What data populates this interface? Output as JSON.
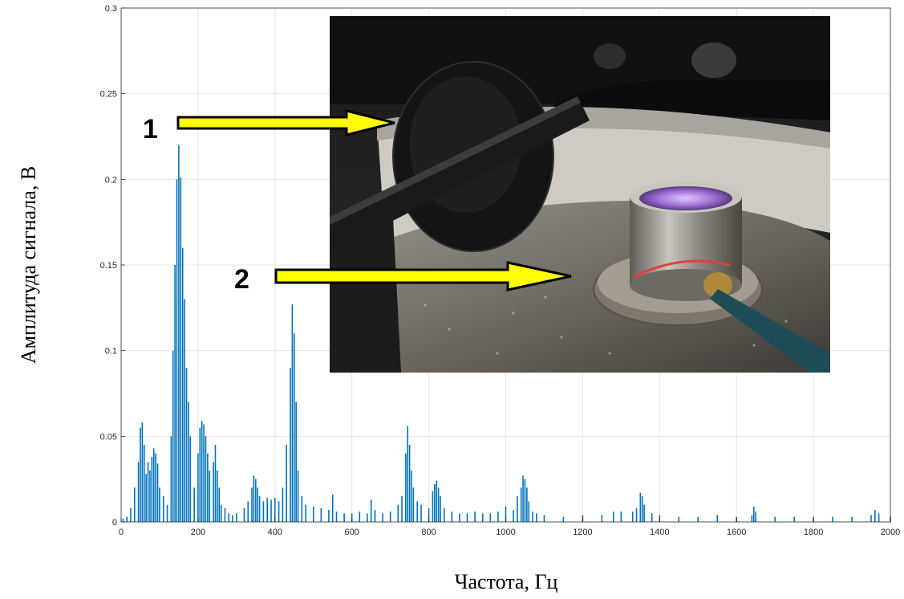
{
  "colors": {
    "series": "#0072BD",
    "grid": "#e6e6e6",
    "axis": "#262626",
    "arrow_fill": "#ffff00",
    "arrow_stroke": "#000000"
  },
  "inset_photo": {
    "description_icon": "photo-inset",
    "callouts": [
      {
        "label": "1"
      },
      {
        "label": "2"
      }
    ]
  },
  "chart_data": {
    "type": "bar",
    "title": "",
    "xlabel": "Частота, Гц",
    "ylabel": "Амплитуда сигнала, В",
    "xlim": [
      0,
      2000
    ],
    "ylim": [
      0,
      0.3
    ],
    "x_ticks": [
      0,
      200,
      400,
      600,
      800,
      1000,
      1200,
      1400,
      1600,
      1800,
      2000
    ],
    "y_ticks": [
      0,
      0.05,
      0.1,
      0.15,
      0.2,
      0.25,
      0.3
    ],
    "x_tick_labels": [
      "0",
      "200",
      "400",
      "600",
      "800",
      "1000",
      "1200",
      "1400",
      "1600",
      "1800",
      "2000"
    ],
    "y_tick_labels": [
      "0",
      "0.05",
      "0.1",
      "0.15",
      "0.2",
      "0.25",
      "0.3"
    ],
    "grid": true,
    "series": [
      {
        "x": [
          5,
          15,
          25,
          35,
          45,
          50,
          55,
          60,
          65,
          70,
          75,
          80,
          85,
          90,
          95,
          100,
          110,
          120,
          130,
          135,
          140,
          145,
          150,
          155,
          160,
          165,
          170,
          175,
          180,
          190,
          200,
          205,
          210,
          215,
          220,
          225,
          230,
          240,
          245,
          250,
          255,
          260,
          270,
          280,
          290,
          300,
          320,
          330,
          340,
          345,
          350,
          355,
          360,
          370,
          380,
          390,
          400,
          410,
          420,
          430,
          440,
          445,
          450,
          455,
          460,
          470,
          480,
          500,
          520,
          540,
          550,
          560,
          580,
          600,
          620,
          640,
          650,
          660,
          680,
          700,
          720,
          730,
          740,
          745,
          750,
          755,
          760,
          770,
          780,
          800,
          810,
          815,
          820,
          825,
          830,
          840,
          860,
          880,
          900,
          920,
          940,
          960,
          980,
          1000,
          1020,
          1030,
          1040,
          1045,
          1050,
          1055,
          1060,
          1070,
          1080,
          1100,
          1150,
          1200,
          1250,
          1280,
          1300,
          1330,
          1340,
          1350,
          1355,
          1360,
          1380,
          1400,
          1450,
          1500,
          1550,
          1600,
          1640,
          1645,
          1650,
          1700,
          1750,
          1800,
          1850,
          1900,
          1950,
          1960,
          1970,
          2000
        ],
        "values": [
          0.002,
          0.003,
          0.008,
          0.02,
          0.035,
          0.055,
          0.058,
          0.045,
          0.028,
          0.035,
          0.03,
          0.038,
          0.043,
          0.04,
          0.034,
          0.02,
          0.015,
          0.01,
          0.05,
          0.1,
          0.15,
          0.2,
          0.22,
          0.201,
          0.16,
          0.13,
          0.09,
          0.07,
          0.05,
          0.02,
          0.04,
          0.055,
          0.059,
          0.057,
          0.05,
          0.04,
          0.03,
          0.035,
          0.045,
          0.03,
          0.02,
          0.01,
          0.008,
          0.005,
          0.004,
          0.005,
          0.008,
          0.012,
          0.02,
          0.027,
          0.025,
          0.02,
          0.015,
          0.012,
          0.014,
          0.013,
          0.014,
          0.012,
          0.02,
          0.045,
          0.09,
          0.127,
          0.11,
          0.07,
          0.03,
          0.015,
          0.01,
          0.009,
          0.008,
          0.007,
          0.016,
          0.006,
          0.005,
          0.005,
          0.006,
          0.005,
          0.013,
          0.007,
          0.005,
          0.006,
          0.01,
          0.015,
          0.04,
          0.056,
          0.045,
          0.03,
          0.02,
          0.012,
          0.01,
          0.008,
          0.018,
          0.022,
          0.024,
          0.02,
          0.015,
          0.008,
          0.006,
          0.005,
          0.005,
          0.006,
          0.005,
          0.005,
          0.006,
          0.009,
          0.007,
          0.015,
          0.02,
          0.027,
          0.025,
          0.02,
          0.012,
          0.006,
          0.005,
          0.004,
          0.003,
          0.004,
          0.004,
          0.006,
          0.006,
          0.006,
          0.008,
          0.017,
          0.015,
          0.01,
          0.005,
          0.004,
          0.003,
          0.003,
          0.004,
          0.003,
          0.004,
          0.009,
          0.006,
          0.003,
          0.003,
          0.003,
          0.003,
          0.003,
          0.004,
          0.007,
          0.005,
          0.003
        ]
      }
    ]
  }
}
